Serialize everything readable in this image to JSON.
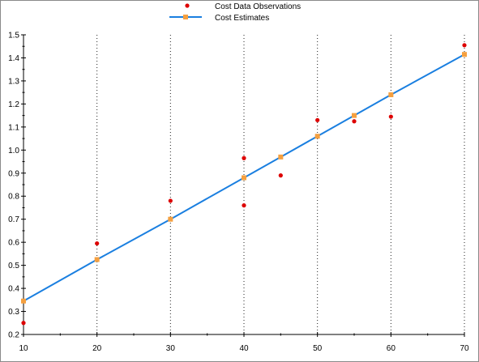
{
  "chart_data": {
    "type": "scatter",
    "title": "",
    "xlabel": "",
    "ylabel": "",
    "xlim": [
      10,
      70
    ],
    "ylim": [
      0.2,
      1.5
    ],
    "x_ticks": [
      "10",
      "20",
      "30",
      "40",
      "50",
      "60",
      "70"
    ],
    "y_ticks": [
      "0.2",
      "0.3",
      "0.4",
      "0.5",
      "0.6",
      "0.7",
      "0.8",
      "0.9",
      "1.0",
      "1.1",
      "1.2",
      "1.3",
      "1.4",
      "1.5"
    ],
    "grid": "vertical-dotted",
    "legend_placement": "top-center",
    "series": [
      {
        "name": "Cost Data Observations",
        "type": "scatter",
        "color": "#dd0000",
        "marker": "circle",
        "x": [
          10,
          20,
          30,
          40,
          40,
          45,
          50,
          55,
          60,
          70
        ],
        "y": [
          0.25,
          0.595,
          0.78,
          0.965,
          0.76,
          0.89,
          1.13,
          1.125,
          1.145,
          1.455
        ]
      },
      {
        "name": "Cost Estimates",
        "type": "line",
        "color": "#1a7fe0",
        "marker": "square",
        "marker_color": "#f5a040",
        "x": [
          10,
          20,
          30,
          40,
          45,
          50,
          55,
          60,
          70
        ],
        "y": [
          0.345,
          0.525,
          0.7,
          0.88,
          0.97,
          1.06,
          1.15,
          1.24,
          1.415
        ]
      }
    ]
  }
}
